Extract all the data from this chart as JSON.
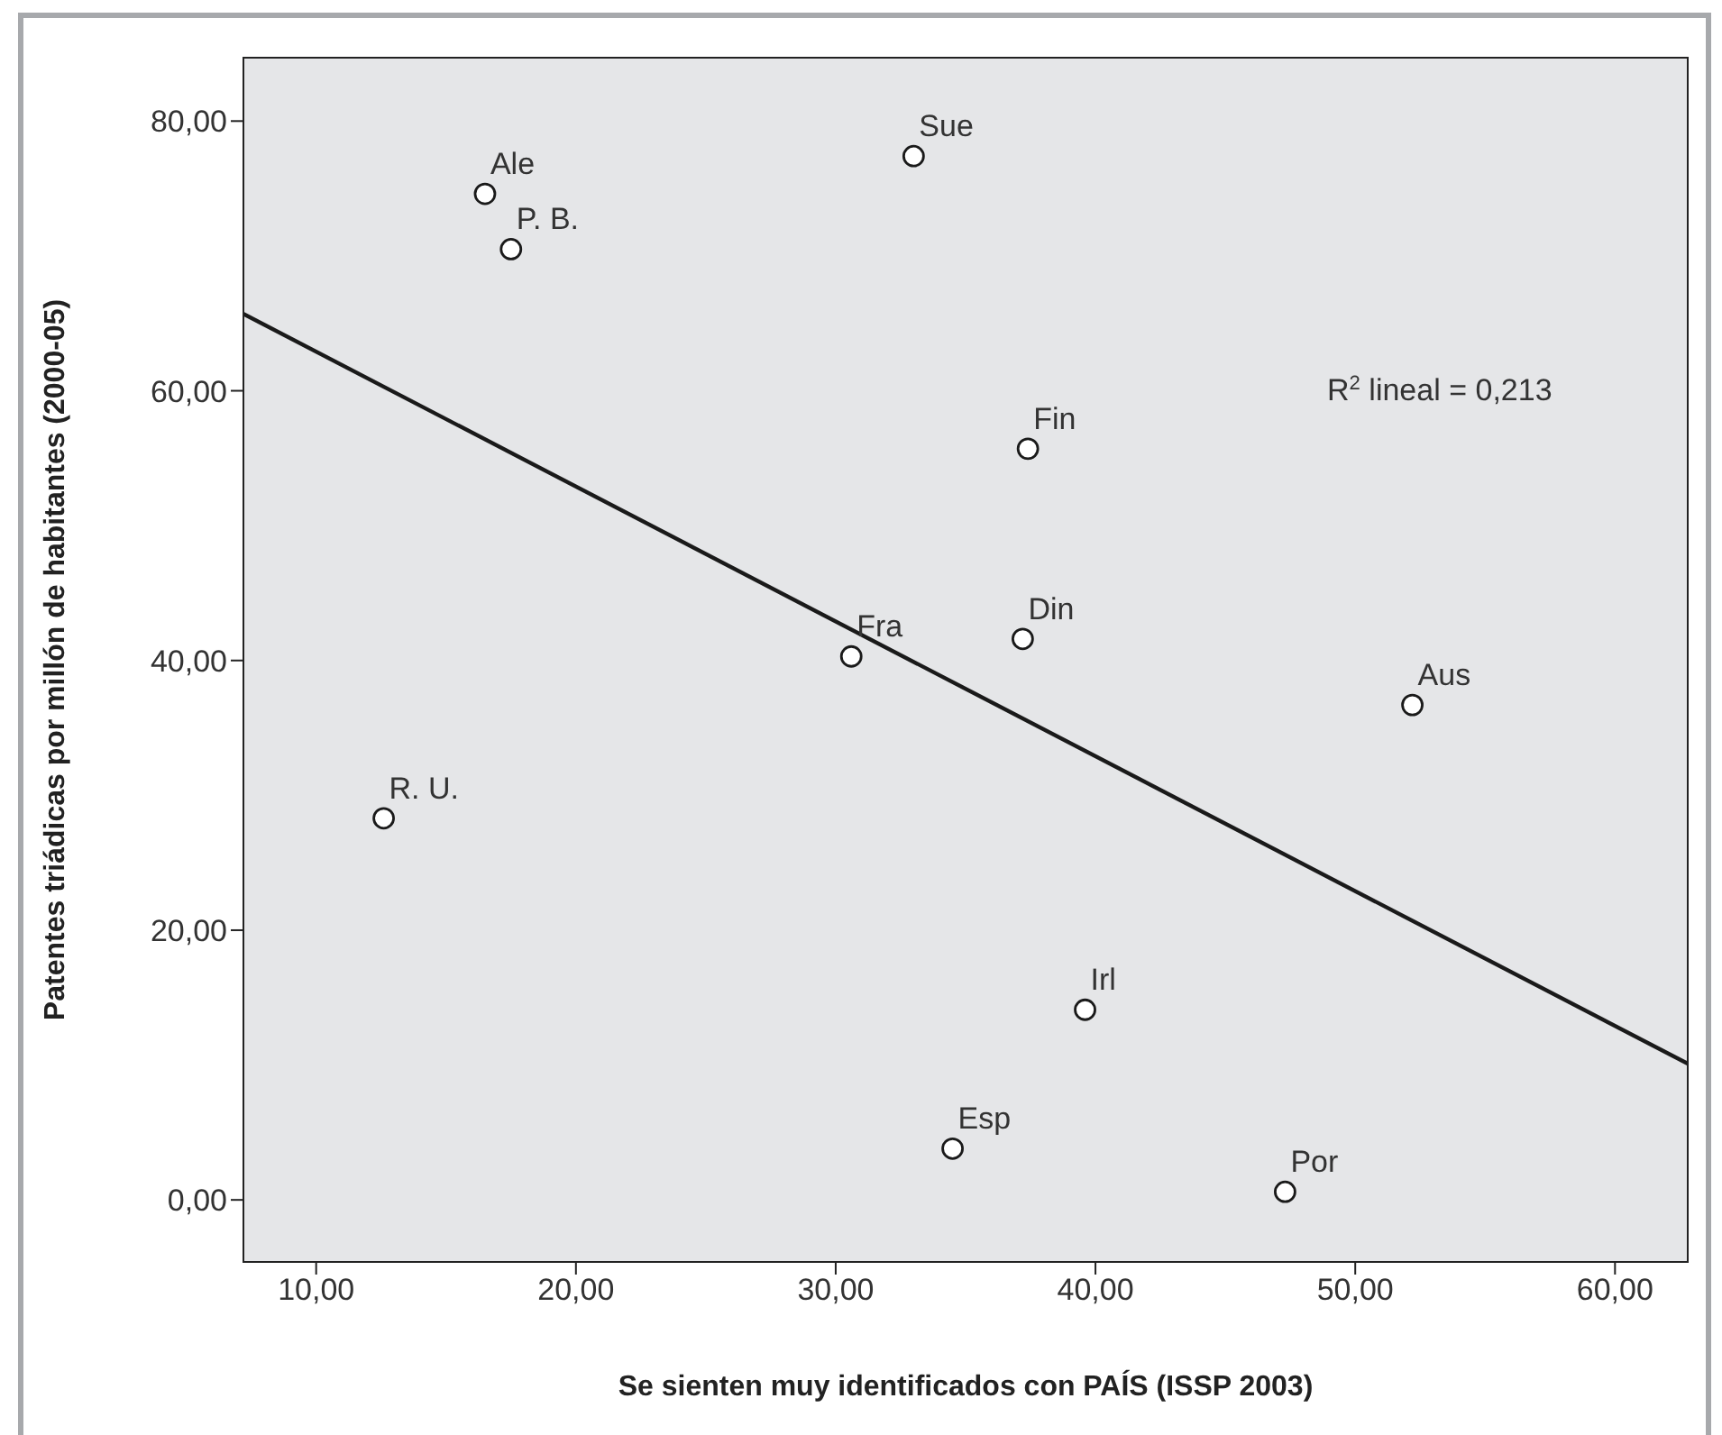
{
  "chart_data": {
    "type": "scatter",
    "xlabel": "Se sienten muy identificados con PAÍS (ISSP 2003)",
    "ylabel": "Patentes triádicas por millón de habitantes (2000-05)",
    "xlim": [
      7.2,
      62.8
    ],
    "ylim": [
      -4.6,
      84.7
    ],
    "xticks": [
      {
        "value": 10,
        "label": "10,00"
      },
      {
        "value": 20,
        "label": "20,00"
      },
      {
        "value": 30,
        "label": "30,00"
      },
      {
        "value": 40,
        "label": "40,00"
      },
      {
        "value": 50,
        "label": "50,00"
      },
      {
        "value": 60,
        "label": "60,00"
      }
    ],
    "yticks": [
      {
        "value": 0,
        "label": "0,00"
      },
      {
        "value": 20,
        "label": "20,00"
      },
      {
        "value": 40,
        "label": "40,00"
      },
      {
        "value": 60,
        "label": "60,00"
      },
      {
        "value": 80,
        "label": "80,00"
      }
    ],
    "grid": false,
    "legend": false,
    "series": [
      {
        "color": "#1a1a1a",
        "marker": "circle",
        "x": [
          16.5,
          17.5,
          33.0,
          37.4,
          37.2,
          52.2,
          30.6,
          12.6,
          39.6,
          34.5,
          47.3
        ],
        "values": [
          74.6,
          70.5,
          77.4,
          55.7,
          41.6,
          36.7,
          40.3,
          28.3,
          14.1,
          3.8,
          0.6
        ]
      },
      {
        "type": "line",
        "color": "#1a1a1a",
        "marker": "none",
        "line_style": "solid",
        "x": [
          7.2,
          62.8
        ],
        "values": [
          65.7,
          10.1
        ]
      }
    ],
    "annotations": [
      {
        "text": "Ale",
        "x": 16.5,
        "y": 74.6
      },
      {
        "text": "P. B.",
        "x": 17.5,
        "y": 70.5
      },
      {
        "text": "Sue",
        "x": 33.0,
        "y": 77.4
      },
      {
        "text": "Fin",
        "x": 37.4,
        "y": 55.7
      },
      {
        "text": "Din",
        "x": 37.2,
        "y": 41.6
      },
      {
        "text": "Aus",
        "x": 52.2,
        "y": 36.7
      },
      {
        "text": "Fra",
        "x": 30.6,
        "y": 40.3
      },
      {
        "text": "R. U.",
        "x": 12.6,
        "y": 28.3
      },
      {
        "text": "Irl",
        "x": 39.6,
        "y": 14.1
      },
      {
        "text": "Esp",
        "x": 34.5,
        "y": 3.8
      },
      {
        "text": "Por",
        "x": 47.3,
        "y": 0.6
      },
      "R$^{2}$ lineal = 0,213"
    ]
  }
}
